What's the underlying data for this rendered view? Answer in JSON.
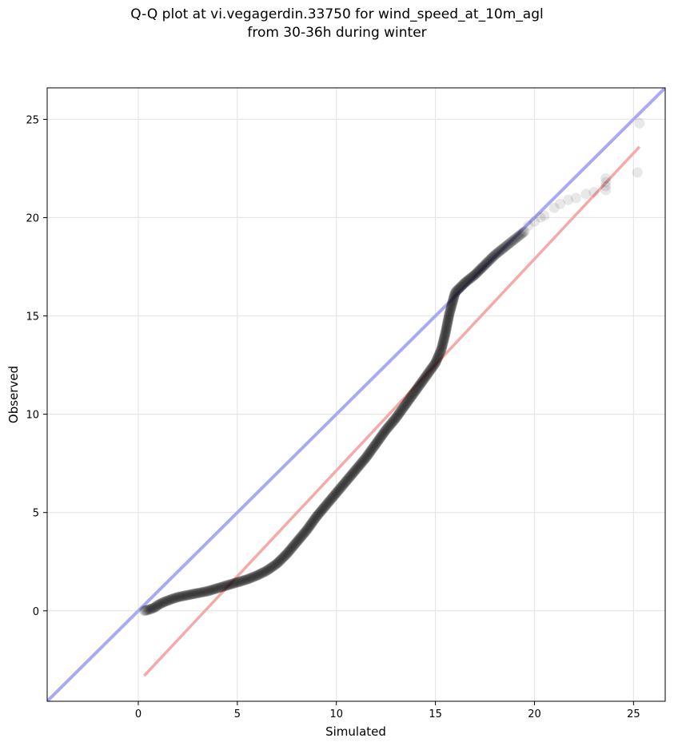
{
  "title_line1": "Q-Q plot at vi.vegagerdin.33750 for wind_speed_at_10m_agl",
  "title_line2": "from 30-36h during winter",
  "chart_data": {
    "type": "scatter",
    "title": "Q-Q plot at vi.vegagerdin.33750 for wind_speed_at_10m_agl\nfrom 30-36h during winter",
    "xlabel": "Simulated",
    "ylabel": "Observed",
    "xlim": [
      -4.6,
      26.6
    ],
    "ylim": [
      -4.6,
      26.6
    ],
    "xticks": [
      0,
      5,
      10,
      15,
      20,
      25
    ],
    "yticks": [
      0,
      5,
      10,
      15,
      20,
      25
    ],
    "grid": true,
    "colors": {
      "points": "#000000",
      "identity_line": "#aaaaf2",
      "fit_line": "#f5aaaa"
    },
    "identity_line": {
      "x": [
        -4.6,
        26.6
      ],
      "y": [
        -4.6,
        26.6
      ]
    },
    "fit_line": {
      "x": [
        0.3,
        25.3
      ],
      "y": [
        -3.3,
        23.6
      ]
    },
    "quantile_curve": {
      "x": [
        0.3,
        0.5,
        0.8,
        1.0,
        1.3,
        1.7,
        2.0,
        2.5,
        3.0,
        3.5,
        4.0,
        4.5,
        5.0,
        5.5,
        6.0,
        6.5,
        7.0,
        7.5,
        8.0,
        8.5,
        9.0,
        9.5,
        10.0,
        10.5,
        11.0,
        11.5,
        12.0,
        12.5,
        13.0,
        13.5,
        14.0,
        14.5,
        15.0,
        15.3,
        15.5,
        15.7,
        16.0,
        16.5,
        17.0,
        17.5,
        18.0,
        18.5,
        19.0,
        19.5
      ],
      "y": [
        0.0,
        0.05,
        0.15,
        0.3,
        0.45,
        0.6,
        0.7,
        0.8,
        0.9,
        1.0,
        1.15,
        1.3,
        1.45,
        1.6,
        1.8,
        2.05,
        2.4,
        2.9,
        3.5,
        4.1,
        4.8,
        5.4,
        6.0,
        6.6,
        7.2,
        7.8,
        8.5,
        9.2,
        9.8,
        10.5,
        11.2,
        11.9,
        12.6,
        13.3,
        14.1,
        15.1,
        16.2,
        16.7,
        17.1,
        17.6,
        18.1,
        18.5,
        18.9,
        19.3
      ],
      "count": 560
    },
    "tail_points": [
      {
        "x": 19.7,
        "y": 19.6
      },
      {
        "x": 20.0,
        "y": 19.8
      },
      {
        "x": 20.3,
        "y": 20.0
      },
      {
        "x": 20.5,
        "y": 20.1
      },
      {
        "x": 21.0,
        "y": 20.5
      },
      {
        "x": 21.3,
        "y": 20.7
      },
      {
        "x": 21.7,
        "y": 20.9
      },
      {
        "x": 22.1,
        "y": 21.0
      },
      {
        "x": 22.6,
        "y": 21.2
      },
      {
        "x": 23.0,
        "y": 21.3
      },
      {
        "x": 23.6,
        "y": 21.4
      },
      {
        "x": 23.6,
        "y": 21.6
      },
      {
        "x": 23.6,
        "y": 21.8
      },
      {
        "x": 23.6,
        "y": 22.0
      },
      {
        "x": 25.2,
        "y": 22.3
      },
      {
        "x": 25.3,
        "y": 24.8
      }
    ]
  }
}
